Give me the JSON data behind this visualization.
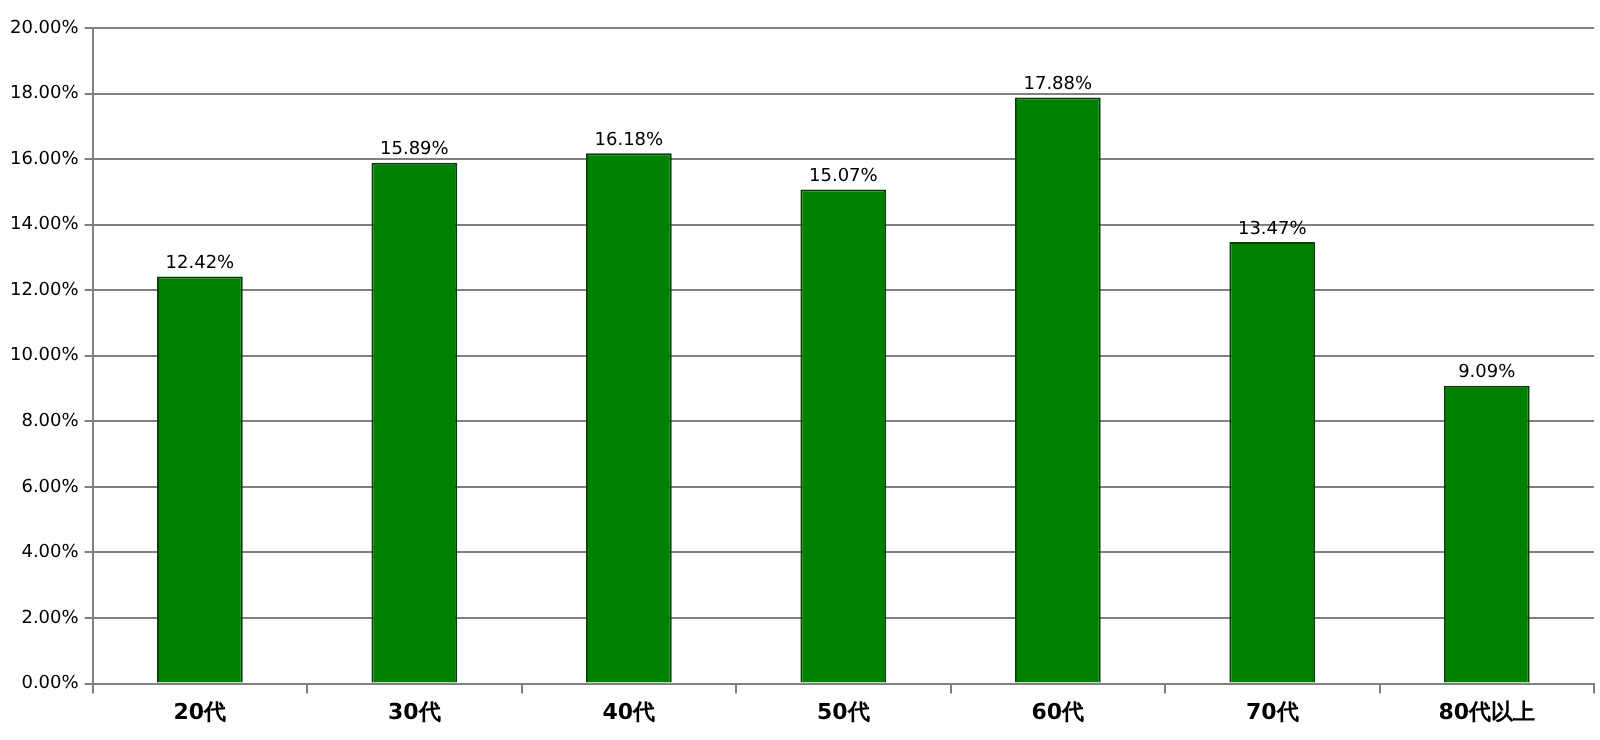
{
  "chart_data": {
    "type": "bar",
    "categories": [
      "20代",
      "30代",
      "40代",
      "50代",
      "60代",
      "70代",
      "80代以上"
    ],
    "values": [
      12.42,
      15.89,
      16.18,
      15.07,
      17.88,
      13.47,
      9.09
    ],
    "value_labels": [
      "12.42%",
      "15.89%",
      "16.18%",
      "15.07%",
      "17.88%",
      "13.47%",
      "9.09%"
    ],
    "color": "#008000",
    "ylim": [
      0,
      20
    ],
    "yticks": [
      {
        "value": 0,
        "label": "0.00%"
      },
      {
        "value": 2,
        "label": "2.00%"
      },
      {
        "value": 4,
        "label": "4.00%"
      },
      {
        "value": 6,
        "label": "6.00%"
      },
      {
        "value": 8,
        "label": "8.00%"
      },
      {
        "value": 10,
        "label": "10.00%"
      },
      {
        "value": 12,
        "label": "12.00%"
      },
      {
        "value": 14,
        "label": "14.00%"
      },
      {
        "value": 16,
        "label": "16.00%"
      },
      {
        "value": 18,
        "label": "18.00%"
      },
      {
        "value": 20,
        "label": "20.00%"
      }
    ],
    "grid": "y",
    "legend": false
  }
}
